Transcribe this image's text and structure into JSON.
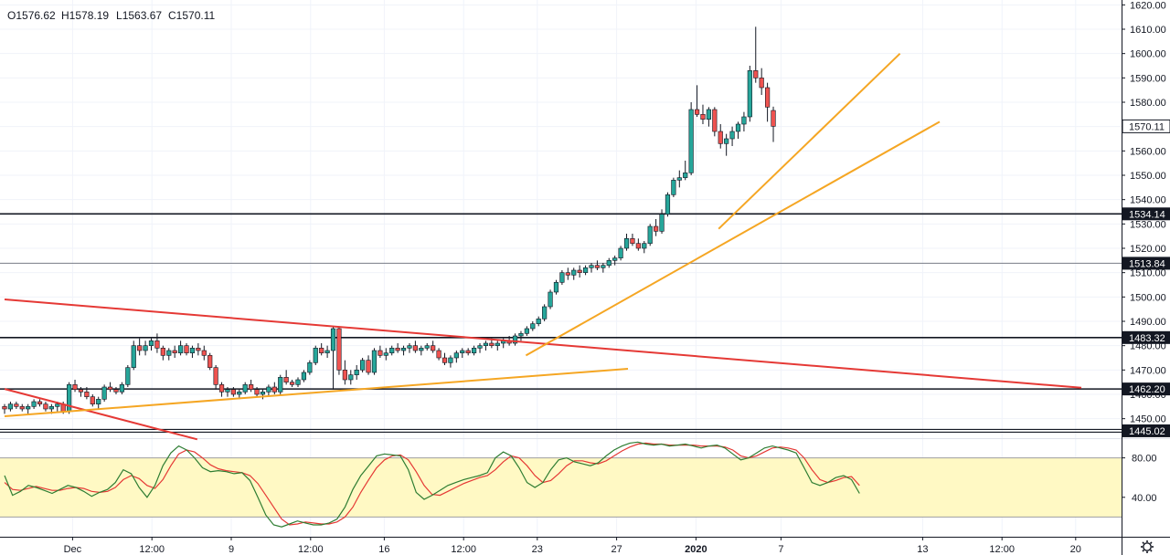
{
  "ohlc": {
    "open": "1576.62",
    "high": "1578.19",
    "low": "1563.67",
    "close": "1570.11"
  },
  "icons": {
    "settings": "gear-icon"
  },
  "colors": {
    "up": "#26a69a",
    "down": "#ef5350",
    "edge": "#131722",
    "trend_orange": "#f5a623",
    "trend_red": "#e53935",
    "stoch_k": "#2e7d32",
    "stoch_d": "#e53935",
    "stoch_band": "#fff9c4"
  },
  "chart_data": {
    "type": "candlestick",
    "title": "",
    "price_axis": {
      "range": [
        1442,
        1622
      ],
      "ticks": [
        1450,
        1460,
        1470,
        1480,
        1490,
        1500,
        1510,
        1520,
        1530,
        1540,
        1550,
        1560,
        1570,
        1580,
        1590,
        1600,
        1610,
        1620
      ],
      "tick_labels": [
        "1450.00",
        "1460.00",
        "1470.00",
        "1480.00",
        "1490.00",
        "1500.00",
        "1510.00",
        "1520.00",
        "1530.00",
        "1540.00",
        "1550.00",
        "1560.00",
        "1570.00",
        "1580.00",
        "1590.00",
        "1600.00",
        "1610.00",
        "1620.00"
      ]
    },
    "time_axis": {
      "bar_range": [
        0,
        146
      ],
      "ticks": [
        {
          "bar": 12,
          "label": "Dec",
          "bold": false
        },
        {
          "bar": 26,
          "label": "12:00",
          "bold": false
        },
        {
          "bar": 40,
          "label": "9",
          "bold": false
        },
        {
          "bar": 54,
          "label": "12:00",
          "bold": false
        },
        {
          "bar": 67,
          "label": "16",
          "bold": false
        },
        {
          "bar": 81,
          "label": "12:00",
          "bold": false
        },
        {
          "bar": 94,
          "label": "23",
          "bold": false
        },
        {
          "bar": 108,
          "label": "27",
          "bold": false
        },
        {
          "bar": 122,
          "label": "2020",
          "bold": true
        },
        {
          "bar": 137,
          "label": "7",
          "bold": false
        },
        {
          "bar": 162,
          "label": "13",
          "bold": false
        },
        {
          "bar": 176,
          "label": "12:00",
          "bold": false
        },
        {
          "bar": 189,
          "label": "20",
          "bold": false
        }
      ]
    },
    "horizontal_levels": [
      {
        "price": 1534.14,
        "label": "1534.14",
        "style": "thick"
      },
      {
        "price": 1513.84,
        "label": "1513.84",
        "style": "thin"
      },
      {
        "price": 1483.32,
        "label": "1483.32",
        "style": "thick"
      },
      {
        "price": 1462.2,
        "label": "1462.20",
        "style": "thick"
      },
      {
        "price": 1445.02,
        "label": "1445.02",
        "style": "double"
      }
    ],
    "last_price": {
      "price": 1570.11,
      "label": "1570.11"
    },
    "trendlines": [
      {
        "color": "trend_red",
        "from": {
          "bar": 0,
          "price": 1499
        },
        "to": {
          "bar": 190,
          "price": 1462.7
        }
      },
      {
        "color": "trend_red",
        "from": {
          "bar": 0,
          "price": 1462.2
        },
        "to": {
          "bar": 34,
          "price": 1441.5
        }
      },
      {
        "color": "trend_orange",
        "from": {
          "bar": 0,
          "price": 1451
        },
        "to": {
          "bar": 110,
          "price": 1470.5
        }
      },
      {
        "color": "trend_orange",
        "from": {
          "bar": 92,
          "price": 1476
        },
        "to": {
          "bar": 165,
          "price": 1572
        }
      },
      {
        "color": "trend_orange",
        "from": {
          "bar": 126,
          "price": 1528
        },
        "to": {
          "bar": 158,
          "price": 1600
        }
      }
    ],
    "candles": [
      [
        1455,
        1456,
        1452,
        1454
      ],
      [
        1454,
        1457,
        1453,
        1456
      ],
      [
        1456,
        1457,
        1454,
        1455
      ],
      [
        1455,
        1456,
        1453,
        1454
      ],
      [
        1454,
        1456,
        1452,
        1455
      ],
      [
        1455,
        1458,
        1454,
        1457
      ],
      [
        1457,
        1458,
        1455,
        1456
      ],
      [
        1456,
        1457,
        1453,
        1454
      ],
      [
        1454,
        1456,
        1452,
        1455
      ],
      [
        1455,
        1457,
        1453,
        1456
      ],
      [
        1456,
        1457,
        1452,
        1453
      ],
      [
        1453,
        1465,
        1452,
        1464
      ],
      [
        1464,
        1466,
        1461,
        1462
      ],
      [
        1462,
        1463,
        1459,
        1461
      ],
      [
        1461,
        1463,
        1458,
        1459
      ],
      [
        1459,
        1460,
        1455,
        1456
      ],
      [
        1456,
        1459,
        1454,
        1458
      ],
      [
        1458,
        1464,
        1457,
        1463
      ],
      [
        1463,
        1465,
        1461,
        1462
      ],
      [
        1462,
        1463,
        1460,
        1461
      ],
      [
        1461,
        1465,
        1460,
        1464
      ],
      [
        1464,
        1472,
        1463,
        1471
      ],
      [
        1471,
        1482,
        1470,
        1480
      ],
      [
        1480,
        1483,
        1476,
        1478
      ],
      [
        1478,
        1482,
        1476,
        1480
      ],
      [
        1480,
        1483,
        1478,
        1482
      ],
      [
        1482,
        1485,
        1477,
        1479
      ],
      [
        1479,
        1480,
        1474,
        1476
      ],
      [
        1476,
        1479,
        1474,
        1478
      ],
      [
        1478,
        1480,
        1475,
        1477
      ],
      [
        1477,
        1482,
        1476,
        1480
      ],
      [
        1480,
        1481,
        1476,
        1477
      ],
      [
        1477,
        1480,
        1475,
        1479
      ],
      [
        1479,
        1481,
        1476,
        1478
      ],
      [
        1478,
        1480,
        1474,
        1476
      ],
      [
        1476,
        1477,
        1470,
        1471
      ],
      [
        1471,
        1472,
        1462,
        1464
      ],
      [
        1464,
        1465,
        1459,
        1461
      ],
      [
        1461,
        1463,
        1459,
        1462
      ],
      [
        1462,
        1463,
        1459,
        1460
      ],
      [
        1460,
        1462,
        1458,
        1461
      ],
      [
        1461,
        1465,
        1460,
        1464
      ],
      [
        1464,
        1466,
        1461,
        1462
      ],
      [
        1462,
        1463,
        1459,
        1460
      ],
      [
        1460,
        1462,
        1458,
        1461
      ],
      [
        1461,
        1464,
        1459,
        1463
      ],
      [
        1463,
        1465,
        1460,
        1461
      ],
      [
        1461,
        1468,
        1460,
        1467
      ],
      [
        1467,
        1470,
        1464,
        1465
      ],
      [
        1465,
        1466,
        1463,
        1464
      ],
      [
        1464,
        1467,
        1463,
        1466
      ],
      [
        1466,
        1470,
        1465,
        1469
      ],
      [
        1469,
        1474,
        1468,
        1473
      ],
      [
        1473,
        1480,
        1472,
        1479
      ],
      [
        1479,
        1481,
        1476,
        1477
      ],
      [
        1477,
        1480,
        1475,
        1478
      ],
      [
        1478,
        1488,
        1462,
        1487
      ],
      [
        1487,
        1488,
        1468,
        1470
      ],
      [
        1470,
        1474,
        1464,
        1466
      ],
      [
        1466,
        1470,
        1464,
        1468
      ],
      [
        1468,
        1472,
        1466,
        1470
      ],
      [
        1470,
        1475,
        1469,
        1474
      ],
      [
        1474,
        1476,
        1468,
        1469
      ],
      [
        1469,
        1479,
        1468,
        1478
      ],
      [
        1478,
        1480,
        1475,
        1476
      ],
      [
        1476,
        1479,
        1474,
        1477
      ],
      [
        1477,
        1480,
        1476,
        1479
      ],
      [
        1479,
        1481,
        1477,
        1478
      ],
      [
        1478,
        1480,
        1476,
        1479
      ],
      [
        1479,
        1481,
        1477,
        1480
      ],
      [
        1480,
        1482,
        1477,
        1478
      ],
      [
        1478,
        1480,
        1476,
        1479
      ],
      [
        1479,
        1481,
        1478,
        1480
      ],
      [
        1480,
        1482,
        1477,
        1478
      ],
      [
        1478,
        1479,
        1474,
        1475
      ],
      [
        1475,
        1477,
        1472,
        1473
      ],
      [
        1473,
        1476,
        1471,
        1475
      ],
      [
        1475,
        1478,
        1473,
        1477
      ],
      [
        1477,
        1479,
        1475,
        1478
      ],
      [
        1478,
        1479,
        1476,
        1477
      ],
      [
        1477,
        1480,
        1476,
        1479
      ],
      [
        1479,
        1481,
        1477,
        1480
      ],
      [
        1480,
        1482,
        1478,
        1481
      ],
      [
        1481,
        1483,
        1479,
        1480
      ],
      [
        1480,
        1482,
        1478,
        1481
      ],
      [
        1481,
        1483,
        1479,
        1482
      ],
      [
        1482,
        1484,
        1480,
        1481
      ],
      [
        1481,
        1485,
        1480,
        1484
      ],
      [
        1484,
        1486,
        1482,
        1485
      ],
      [
        1485,
        1488,
        1484,
        1487
      ],
      [
        1487,
        1490,
        1486,
        1489
      ],
      [
        1489,
        1492,
        1488,
        1491
      ],
      [
        1491,
        1497,
        1490,
        1496
      ],
      [
        1496,
        1503,
        1495,
        1502
      ],
      [
        1502,
        1507,
        1501,
        1506
      ],
      [
        1506,
        1511,
        1505,
        1510
      ],
      [
        1510,
        1512,
        1507,
        1509
      ],
      [
        1509,
        1512,
        1507,
        1511
      ],
      [
        1511,
        1513,
        1508,
        1510
      ],
      [
        1510,
        1513,
        1509,
        1512
      ],
      [
        1512,
        1514,
        1510,
        1513
      ],
      [
        1513,
        1515,
        1511,
        1512
      ],
      [
        1512,
        1514,
        1510,
        1513
      ],
      [
        1513,
        1516,
        1512,
        1515
      ],
      [
        1515,
        1517,
        1513,
        1516
      ],
      [
        1516,
        1521,
        1515,
        1520
      ],
      [
        1520,
        1526,
        1519,
        1524
      ],
      [
        1524,
        1526,
        1521,
        1522
      ],
      [
        1522,
        1524,
        1519,
        1520
      ],
      [
        1520,
        1523,
        1518,
        1522
      ],
      [
        1522,
        1530,
        1521,
        1529
      ],
      [
        1529,
        1532,
        1525,
        1527
      ],
      [
        1527,
        1536,
        1526,
        1534
      ],
      [
        1534,
        1543,
        1533,
        1542
      ],
      [
        1542,
        1549,
        1541,
        1548
      ],
      [
        1548,
        1552,
        1545,
        1549
      ],
      [
        1549,
        1556,
        1548,
        1551
      ],
      [
        1551,
        1580,
        1550,
        1577
      ],
      [
        1577,
        1587,
        1574,
        1575
      ],
      [
        1575,
        1579,
        1571,
        1573
      ],
      [
        1573,
        1578,
        1570,
        1577
      ],
      [
        1577,
        1578,
        1566,
        1568
      ],
      [
        1568,
        1571,
        1561,
        1563
      ],
      [
        1563,
        1567,
        1558,
        1565
      ],
      [
        1565,
        1570,
        1562,
        1568
      ],
      [
        1568,
        1572,
        1565,
        1571
      ],
      [
        1571,
        1576,
        1568,
        1574
      ],
      [
        1574,
        1595,
        1572,
        1593
      ],
      [
        1593,
        1611,
        1588,
        1590
      ],
      [
        1590,
        1594,
        1583,
        1586
      ],
      [
        1586,
        1588,
        1572,
        1578
      ],
      [
        1576.62,
        1578.19,
        1563.67,
        1570.11
      ]
    ],
    "candle_x_bars": "0-146, candles occupy bars 0..146 at ~1.47 bars per candle index",
    "oscillator": {
      "range": [
        0,
        100
      ],
      "ticks": [
        40,
        80
      ],
      "tick_labels": [
        "40.00",
        "80.00"
      ],
      "band": [
        20,
        80
      ],
      "k": [
        62,
        42,
        46,
        52,
        50,
        47,
        44,
        48,
        52,
        50,
        46,
        41,
        45,
        48,
        55,
        68,
        64,
        50,
        40,
        52,
        72,
        85,
        92,
        88,
        80,
        70,
        66,
        67,
        66,
        64,
        65,
        57,
        40,
        22,
        12,
        10,
        13,
        16,
        14,
        12,
        12,
        14,
        18,
        30,
        48,
        62,
        72,
        82,
        84,
        83,
        82,
        68,
        45,
        38,
        42,
        47,
        52,
        55,
        58,
        60,
        62,
        65,
        80,
        86,
        82,
        70,
        55,
        50,
        55,
        68,
        78,
        80,
        76,
        74,
        72,
        75,
        82,
        88,
        92,
        95,
        96,
        94,
        93,
        94,
        92,
        93,
        94,
        92,
        90,
        92,
        93,
        90,
        84,
        78,
        80,
        85,
        90,
        92,
        90,
        88,
        85,
        70,
        55,
        52,
        55,
        60,
        62,
        58,
        44
      ],
      "d": [
        55,
        48,
        47,
        49,
        51,
        49,
        47,
        47,
        49,
        50,
        49,
        46,
        45,
        46,
        50,
        58,
        62,
        59,
        52,
        49,
        58,
        72,
        84,
        88,
        86,
        80,
        73,
        69,
        67,
        66,
        65,
        62,
        54,
        42,
        30,
        18,
        12,
        13,
        15,
        14,
        13,
        13,
        15,
        20,
        30,
        45,
        58,
        70,
        78,
        82,
        83,
        78,
        66,
        52,
        43,
        42,
        46,
        50,
        54,
        57,
        60,
        62,
        68,
        76,
        82,
        80,
        72,
        62,
        55,
        57,
        64,
        72,
        77,
        77,
        75,
        74,
        77,
        82,
        87,
        91,
        94,
        95,
        94,
        94,
        93,
        93,
        93,
        93,
        92,
        92,
        92,
        91,
        88,
        82,
        80,
        82,
        86,
        90,
        91,
        90,
        88,
        80,
        68,
        58,
        55,
        57,
        60,
        61,
        52
      ]
    }
  }
}
